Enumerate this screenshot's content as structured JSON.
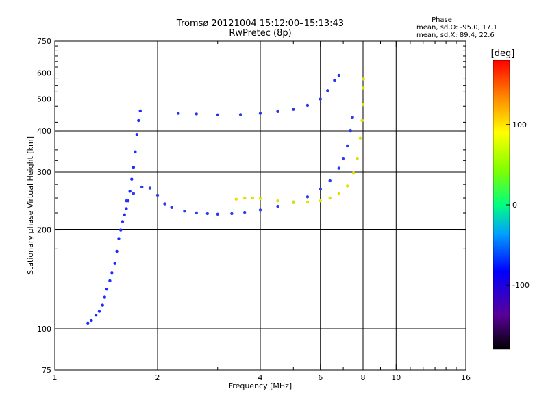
{
  "header": {
    "title_line1": "Tromsø 20121004 15:12:00–15:13:43",
    "title_line2": "RwPretec (8p)"
  },
  "stats": {
    "heading": "Phase",
    "line1": "mean, sd,O: -95.0, 17.1",
    "line2": "mean, sd,X:  89.4, 22.6"
  },
  "chart_data": {
    "type": "scatter",
    "xlabel": "Frequency [MHz]",
    "ylabel": "Stationary phase Virtual Height [km]",
    "x_scale": "log2",
    "y_scale": "log",
    "xlim": [
      1,
      16
    ],
    "ylim": [
      75,
      750
    ],
    "x_ticks": [
      {
        "value": 1,
        "label": "1"
      },
      {
        "value": 2,
        "label": "2"
      },
      {
        "value": 4,
        "label": "4"
      },
      {
        "value": 6,
        "label": "6"
      },
      {
        "value": 8,
        "label": "8"
      },
      {
        "value": 10,
        "label": "10"
      },
      {
        "value": 16,
        "label": "16"
      }
    ],
    "y_ticks": [
      {
        "value": 75,
        "label": "75"
      },
      {
        "value": 100,
        "label": "100"
      },
      {
        "value": 200,
        "label": "200"
      },
      {
        "value": 300,
        "label": "300"
      },
      {
        "value": 400,
        "label": "400"
      },
      {
        "value": 500,
        "label": "500"
      },
      {
        "value": 600,
        "label": "600"
      },
      {
        "value": 750,
        "label": "750"
      }
    ],
    "grid": true,
    "grid_x": [
      2,
      4,
      6,
      8,
      10
    ],
    "grid_y": [
      100,
      200,
      300,
      400,
      500,
      600
    ],
    "colorbar": {
      "label": "[deg]",
      "range": [
        -180,
        180
      ],
      "ticks": [
        {
          "value": 100,
          "label": "100"
        },
        {
          "value": 0,
          "label": "0"
        },
        {
          "value": -100,
          "label": "-100"
        }
      ]
    },
    "series": [
      {
        "values": [
          [
            1.25,
            104
          ],
          [
            1.28,
            106
          ],
          [
            1.32,
            110
          ],
          [
            1.35,
            113
          ],
          [
            1.38,
            118
          ],
          [
            1.4,
            125
          ],
          [
            1.42,
            132
          ],
          [
            1.45,
            140
          ],
          [
            1.47,
            148
          ],
          [
            1.5,
            158
          ],
          [
            1.52,
            172
          ],
          [
            1.54,
            188
          ],
          [
            1.56,
            200
          ],
          [
            1.58,
            212
          ],
          [
            1.6,
            222
          ],
          [
            1.62,
            232
          ],
          [
            1.64,
            245
          ],
          [
            1.66,
            262
          ],
          [
            1.68,
            285
          ],
          [
            1.7,
            310
          ],
          [
            1.72,
            345
          ],
          [
            1.74,
            390
          ],
          [
            1.76,
            430
          ],
          [
            1.78,
            460
          ]
        ]
      },
      {
        "values": [
          [
            1.62,
            245
          ],
          [
            1.7,
            258
          ],
          [
            1.8,
            270
          ],
          [
            1.9,
            268
          ],
          [
            2.0,
            255
          ],
          [
            2.1,
            240
          ],
          [
            2.2,
            234
          ],
          [
            2.4,
            228
          ],
          [
            2.6,
            225
          ],
          [
            2.8,
            224
          ],
          [
            3.0,
            223
          ],
          [
            3.3,
            224
          ],
          [
            3.6,
            226
          ],
          [
            4.0,
            230
          ],
          [
            4.5,
            236
          ],
          [
            5.0,
            243
          ],
          [
            5.5,
            252
          ],
          [
            6.0,
            266
          ],
          [
            6.4,
            282
          ],
          [
            6.8,
            308
          ],
          [
            7.0,
            330
          ],
          [
            7.2,
            360
          ],
          [
            7.35,
            400
          ],
          [
            7.45,
            440
          ]
        ]
      },
      {
        "values": [
          [
            3.4,
            248
          ],
          [
            3.6,
            250
          ],
          [
            3.8,
            250
          ],
          [
            4.0,
            249
          ],
          [
            4.5,
            245
          ],
          [
            5.0,
            242
          ],
          [
            5.5,
            243
          ],
          [
            6.0,
            245
          ],
          [
            6.4,
            250
          ],
          [
            6.8,
            258
          ],
          [
            7.2,
            272
          ],
          [
            7.5,
            298
          ],
          [
            7.7,
            330
          ],
          [
            7.85,
            380
          ],
          [
            7.95,
            430
          ],
          [
            8.0,
            480
          ],
          [
            8.02,
            540
          ],
          [
            8.03,
            575
          ]
        ]
      },
      {
        "values": [
          [
            2.3,
            452
          ],
          [
            2.6,
            450
          ],
          [
            3.0,
            447
          ],
          [
            3.5,
            448
          ],
          [
            4.0,
            452
          ],
          [
            4.5,
            458
          ],
          [
            5.0,
            465
          ],
          [
            5.5,
            478
          ],
          [
            6.0,
            500
          ],
          [
            6.3,
            530
          ],
          [
            6.6,
            570
          ],
          [
            6.8,
            590
          ]
        ]
      }
    ]
  }
}
